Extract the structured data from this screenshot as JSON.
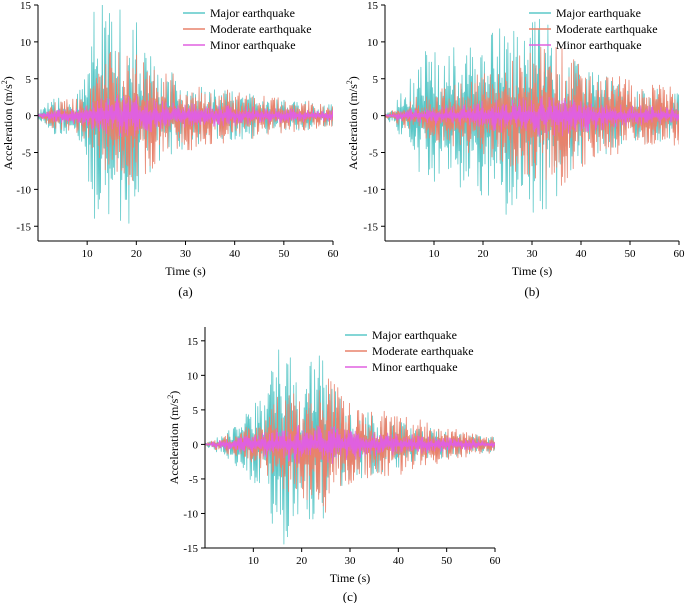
{
  "colors": {
    "major": "#5cc8c8",
    "moderate": "#e8826c",
    "minor": "#e060e0",
    "axis": "#000000",
    "background": "#ffffff"
  },
  "chart_data": [
    {
      "type": "line",
      "panel_label": "(a)",
      "xlabel": "Time (s)",
      "ylabel": "Acceleration (m/s²)",
      "ylabel_main": "Acceleration (m/s",
      "ylabel_sup": "2",
      "ylabel_end": ")",
      "xlim": [
        0,
        60
      ],
      "ylim": [
        -17,
        15
      ],
      "xticks": [
        10,
        20,
        30,
        40,
        50,
        60
      ],
      "yticks": [
        -15,
        -10,
        -5,
        0,
        5,
        10,
        15
      ],
      "legend_position": "top-right",
      "series": [
        {
          "name": "Major earthquake",
          "key": "major",
          "envelope_t": [
            0,
            3,
            8,
            10,
            11,
            12,
            14,
            18,
            20,
            22,
            25,
            30,
            35,
            40,
            50,
            60
          ],
          "envelope_a": [
            0.5,
            2.5,
            3.5,
            7,
            14,
            16.5,
            15,
            15,
            14.5,
            9,
            7,
            4.5,
            3.5,
            3.5,
            2.5,
            1.5
          ]
        },
        {
          "name": "Moderate earthquake",
          "key": "moderate",
          "envelope_t": [
            0,
            3,
            8,
            10,
            12,
            14,
            16,
            20,
            22,
            25,
            30,
            35,
            40,
            50,
            60
          ],
          "envelope_a": [
            0.3,
            1.8,
            2.5,
            4,
            6.5,
            9.5,
            10,
            9,
            8,
            6.5,
            5,
            4,
            3.5,
            2.5,
            1.5
          ]
        },
        {
          "name": "Minor earthquake",
          "key": "minor",
          "envelope_t": [
            0,
            3,
            8,
            12,
            16,
            20,
            25,
            30,
            40,
            50,
            60
          ],
          "envelope_a": [
            0.2,
            0.8,
            1.2,
            2.3,
            3,
            2.8,
            2.2,
            1.8,
            1.3,
            1,
            0.7
          ]
        }
      ]
    },
    {
      "type": "line",
      "panel_label": "(b)",
      "xlabel": "Time (s)",
      "ylabel": "Acceleration (m/s²)",
      "ylabel_main": "Acceleration (m/s",
      "ylabel_sup": "2",
      "ylabel_end": ")",
      "xlim": [
        0,
        60
      ],
      "ylim": [
        -17,
        15
      ],
      "xticks": [
        10,
        20,
        30,
        40,
        50,
        60
      ],
      "yticks": [
        -15,
        -10,
        -5,
        0,
        5,
        10,
        15
      ],
      "legend_position": "top-right",
      "series": [
        {
          "name": "Major earthquake",
          "key": "major",
          "envelope_t": [
            0,
            2,
            4,
            8,
            12,
            16,
            20,
            23,
            27,
            30,
            33,
            35,
            38,
            42,
            50,
            60
          ],
          "envelope_a": [
            0.3,
            1.5,
            4,
            9.5,
            9,
            10.5,
            11,
            13.5,
            15,
            14,
            14,
            11,
            8,
            6,
            4.5,
            3
          ]
        },
        {
          "name": "Moderate earthquake",
          "key": "moderate",
          "envelope_t": [
            0,
            3,
            8,
            15,
            20,
            25,
            30,
            35,
            37,
            40,
            50,
            60
          ],
          "envelope_a": [
            0.2,
            1.5,
            3,
            4.5,
            6,
            7.5,
            9,
            10.5,
            10,
            7,
            5,
            4
          ]
        },
        {
          "name": "Minor earthquake",
          "key": "minor",
          "envelope_t": [
            0,
            3,
            10,
            20,
            30,
            35,
            40,
            50,
            60
          ],
          "envelope_a": [
            0.1,
            0.7,
            1.3,
            2,
            2.8,
            3,
            2.3,
            1.5,
            1
          ]
        }
      ]
    },
    {
      "type": "line",
      "panel_label": "(c)",
      "xlabel": "Time (s)",
      "ylabel": "Acceleration (m/s²)",
      "ylabel_main": "Acceleration (m/s",
      "ylabel_sup": "2",
      "ylabel_end": ")",
      "xlim": [
        0,
        60
      ],
      "ylim": [
        -15,
        17
      ],
      "xticks": [
        10,
        20,
        30,
        40,
        50,
        60
      ],
      "yticks": [
        -15,
        -10,
        -5,
        0,
        5,
        10,
        15
      ],
      "legend_position": "top-right",
      "series": [
        {
          "name": "Major earthquake",
          "key": "major",
          "envelope_t": [
            0,
            3,
            6,
            10,
            13,
            16,
            18,
            20,
            22,
            24,
            26,
            28,
            32,
            40,
            50,
            60
          ],
          "envelope_a": [
            0.2,
            1.5,
            3,
            5.5,
            10,
            15,
            12,
            11,
            13,
            16.5,
            10,
            7,
            5,
            3.5,
            2,
            1
          ]
        },
        {
          "name": "Moderate earthquake",
          "key": "moderate",
          "envelope_t": [
            0,
            3,
            8,
            12,
            15,
            20,
            25,
            28,
            30,
            35,
            40,
            50,
            60
          ],
          "envelope_a": [
            0.2,
            1,
            2.5,
            4.5,
            7,
            8,
            10,
            8,
            6,
            5,
            4.5,
            2.5,
            1.2
          ]
        },
        {
          "name": "Minor earthquake",
          "key": "minor",
          "envelope_t": [
            0,
            3,
            10,
            15,
            20,
            25,
            30,
            40,
            50,
            60
          ],
          "envelope_a": [
            0.1,
            0.6,
            1.5,
            2.3,
            3,
            3,
            2.3,
            1.6,
            1,
            0.6
          ]
        }
      ]
    }
  ]
}
